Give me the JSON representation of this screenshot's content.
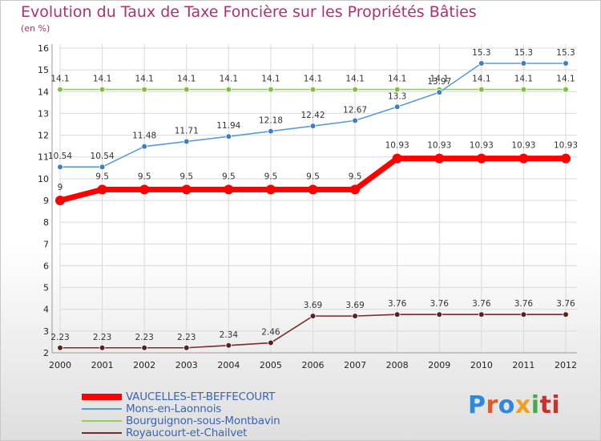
{
  "chart_data": {
    "type": "line",
    "title": "Evolution du Taux de Taxe Foncière sur les Propriétés Bâties",
    "subtitle": "(en %)",
    "xlabel": "",
    "ylabel": "",
    "categories": [
      "2000",
      "2001",
      "2002",
      "2003",
      "2004",
      "2005",
      "2006",
      "2007",
      "2008",
      "2009",
      "2010",
      "2011",
      "2012"
    ],
    "ylim": [
      2,
      16
    ],
    "yticks": [
      2,
      3,
      4,
      5,
      6,
      7,
      8,
      9,
      10,
      11,
      12,
      13,
      14,
      15,
      16
    ],
    "series": [
      {
        "name": "VAUCELLES-ET-BEFFECOURT",
        "color": "#ff0000",
        "values": [
          9,
          9.5,
          9.5,
          9.5,
          9.5,
          9.5,
          9.5,
          9.5,
          10.93,
          10.93,
          10.93,
          10.93,
          10.93
        ],
        "labels": [
          "9",
          "9.5",
          "9.5",
          "9.5",
          "9.5",
          "9.5",
          "9.5",
          "9.5",
          "10.93",
          "10.93",
          "10.93",
          "10.93",
          "10.93"
        ]
      },
      {
        "name": "Mons-en-Laonnois",
        "color": "#5b9bd5",
        "values": [
          10.54,
          10.54,
          11.48,
          11.71,
          11.94,
          12.18,
          12.42,
          12.67,
          13.3,
          13.97,
          15.3,
          15.3,
          15.3
        ],
        "labels": [
          "10.54",
          "10.54",
          "11.48",
          "11.71",
          "11.94",
          "12.18",
          "12.42",
          "12.67",
          "13.3",
          "13.97",
          "15.3",
          "15.3",
          "15.3"
        ]
      },
      {
        "name": "Bourguignon-sous-Montbavin",
        "color": "#92d050",
        "values": [
          14.1,
          14.1,
          14.1,
          14.1,
          14.1,
          14.1,
          14.1,
          14.1,
          14.1,
          14.1,
          14.1,
          14.1,
          14.1
        ],
        "labels": [
          "14.1",
          "14.1",
          "14.1",
          "14.1",
          "14.1",
          "14.1",
          "14.1",
          "14.1",
          "14.1",
          "14.1",
          "14.1",
          "14.1",
          "14.1"
        ]
      },
      {
        "name": "Royaucourt-et-Chailvet",
        "color": "#7a2a2a",
        "values": [
          2.23,
          2.23,
          2.23,
          2.23,
          2.34,
          2.46,
          3.69,
          3.69,
          3.76,
          3.76,
          3.76,
          3.76,
          3.76
        ],
        "labels": [
          "2.23",
          "2.23",
          "2.23",
          "2.23",
          "2.34",
          "2.46",
          "3.69",
          "3.69",
          "3.76",
          "3.76",
          "3.76",
          "3.76",
          "3.76"
        ]
      }
    ],
    "legend_position": "bottom-left"
  },
  "logo": {
    "letters": [
      "P",
      "r",
      "o",
      "x",
      "i",
      "ti"
    ]
  }
}
